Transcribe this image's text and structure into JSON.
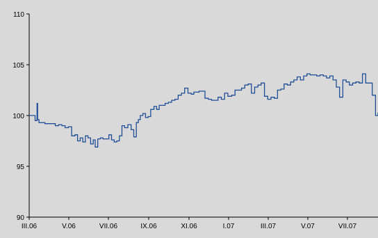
{
  "chart_data": {
    "type": "line",
    "title": "",
    "xlabel": "",
    "ylabel": "",
    "ylim": [
      90,
      110
    ],
    "y_ticks": [
      "90",
      "95",
      "100",
      "105",
      "110"
    ],
    "x_tick_labels": [
      "III.06",
      "V.06",
      "VII.06",
      "IX.06",
      "XI.06",
      "I.07",
      "III.07",
      "V.07",
      "VII.07"
    ],
    "grid": false,
    "legend": "none",
    "colors": {
      "background": "#d9d9d9",
      "line": "#1f4e96",
      "axis": "#000000"
    },
    "series": [
      {
        "x": [
          "2006-03-01",
          "2006-03-04",
          "2006-03-08",
          "2006-03-10",
          "2006-03-12",
          "2006-03-13",
          "2006-03-14",
          "2006-03-16",
          "2006-03-20",
          "2006-03-25",
          "2006-03-30",
          "2006-04-05",
          "2006-04-10",
          "2006-04-15",
          "2006-04-20",
          "2006-04-25",
          "2006-04-30",
          "2006-05-05",
          "2006-05-10",
          "2006-05-14",
          "2006-05-18",
          "2006-05-22",
          "2006-05-26",
          "2006-05-30",
          "2006-06-03",
          "2006-06-07",
          "2006-06-10",
          "2006-06-14",
          "2006-06-18",
          "2006-06-22",
          "2006-06-26",
          "2006-07-01",
          "2006-07-05",
          "2006-07-09",
          "2006-07-13",
          "2006-07-17",
          "2006-07-21",
          "2006-07-25",
          "2006-07-30",
          "2006-08-04",
          "2006-08-08",
          "2006-08-12",
          "2006-08-15",
          "2006-08-18",
          "2006-08-22",
          "2006-08-26",
          "2006-08-30",
          "2006-09-03",
          "2006-09-08",
          "2006-09-12",
          "2006-09-16",
          "2006-09-20",
          "2006-09-25",
          "2006-09-30",
          "2006-10-05",
          "2006-10-10",
          "2006-10-15",
          "2006-10-20",
          "2006-10-25",
          "2006-10-30",
          "2006-11-04",
          "2006-11-08",
          "2006-11-12",
          "2006-11-16",
          "2006-11-20",
          "2006-11-25",
          "2006-11-30",
          "2006-12-05",
          "2006-12-10",
          "2006-12-15",
          "2006-12-20",
          "2006-12-25",
          "2006-12-30",
          "2007-01-05",
          "2007-01-10",
          "2007-01-15",
          "2007-01-20",
          "2007-01-25",
          "2007-01-30",
          "2007-02-04",
          "2007-02-09",
          "2007-02-14",
          "2007-02-19",
          "2007-02-24",
          "2007-03-01",
          "2007-03-06",
          "2007-03-11",
          "2007-03-16",
          "2007-03-21",
          "2007-03-26",
          "2007-03-31",
          "2007-04-05",
          "2007-04-10",
          "2007-04-15",
          "2007-04-20",
          "2007-04-25",
          "2007-04-30",
          "2007-05-05",
          "2007-05-10",
          "2007-05-15",
          "2007-05-20",
          "2007-05-25",
          "2007-05-30",
          "2007-06-04",
          "2007-06-09",
          "2007-06-14",
          "2007-06-19",
          "2007-06-24",
          "2007-06-29",
          "2007-07-04",
          "2007-07-09",
          "2007-07-14",
          "2007-07-19",
          "2007-07-24",
          "2007-07-29",
          "2007-08-03",
          "2007-08-08",
          "2007-08-13",
          "2007-08-18"
        ],
        "y": [
          100.0,
          100.0,
          100.0,
          99.5,
          99.5,
          101.2,
          99.6,
          99.3,
          99.3,
          99.2,
          99.2,
          99.2,
          99.0,
          99.1,
          99.0,
          98.8,
          98.9,
          98.0,
          98.1,
          97.5,
          97.8,
          97.4,
          98.0,
          97.8,
          97.2,
          97.6,
          96.9,
          97.7,
          97.8,
          97.7,
          97.7,
          98.1,
          97.6,
          97.4,
          97.5,
          98.0,
          99.0,
          98.8,
          99.1,
          98.6,
          97.9,
          99.3,
          99.6,
          100.0,
          100.2,
          99.8,
          99.9,
          100.6,
          100.9,
          100.6,
          101.0,
          101.0,
          101.2,
          101.3,
          101.5,
          101.6,
          102.0,
          102.2,
          102.7,
          102.2,
          102.1,
          102.3,
          102.3,
          102.4,
          102.4,
          101.7,
          101.6,
          101.5,
          101.5,
          101.8,
          101.6,
          102.2,
          101.9,
          102.0,
          102.5,
          102.5,
          102.7,
          103.0,
          103.1,
          102.2,
          102.8,
          103.0,
          103.2,
          101.9,
          101.6,
          101.8,
          101.7,
          102.5,
          102.6,
          103.1,
          103.0,
          103.3,
          103.5,
          103.8,
          103.5,
          103.9,
          104.1,
          104.0,
          104.0,
          103.9,
          104.0,
          103.9,
          103.7,
          103.9,
          103.5,
          102.8,
          101.8,
          103.5,
          103.3,
          103.0,
          103.2,
          103.3,
          103.2,
          104.1,
          103.2,
          103.2,
          102.0,
          100.0,
          100.3
        ]
      }
    ]
  }
}
